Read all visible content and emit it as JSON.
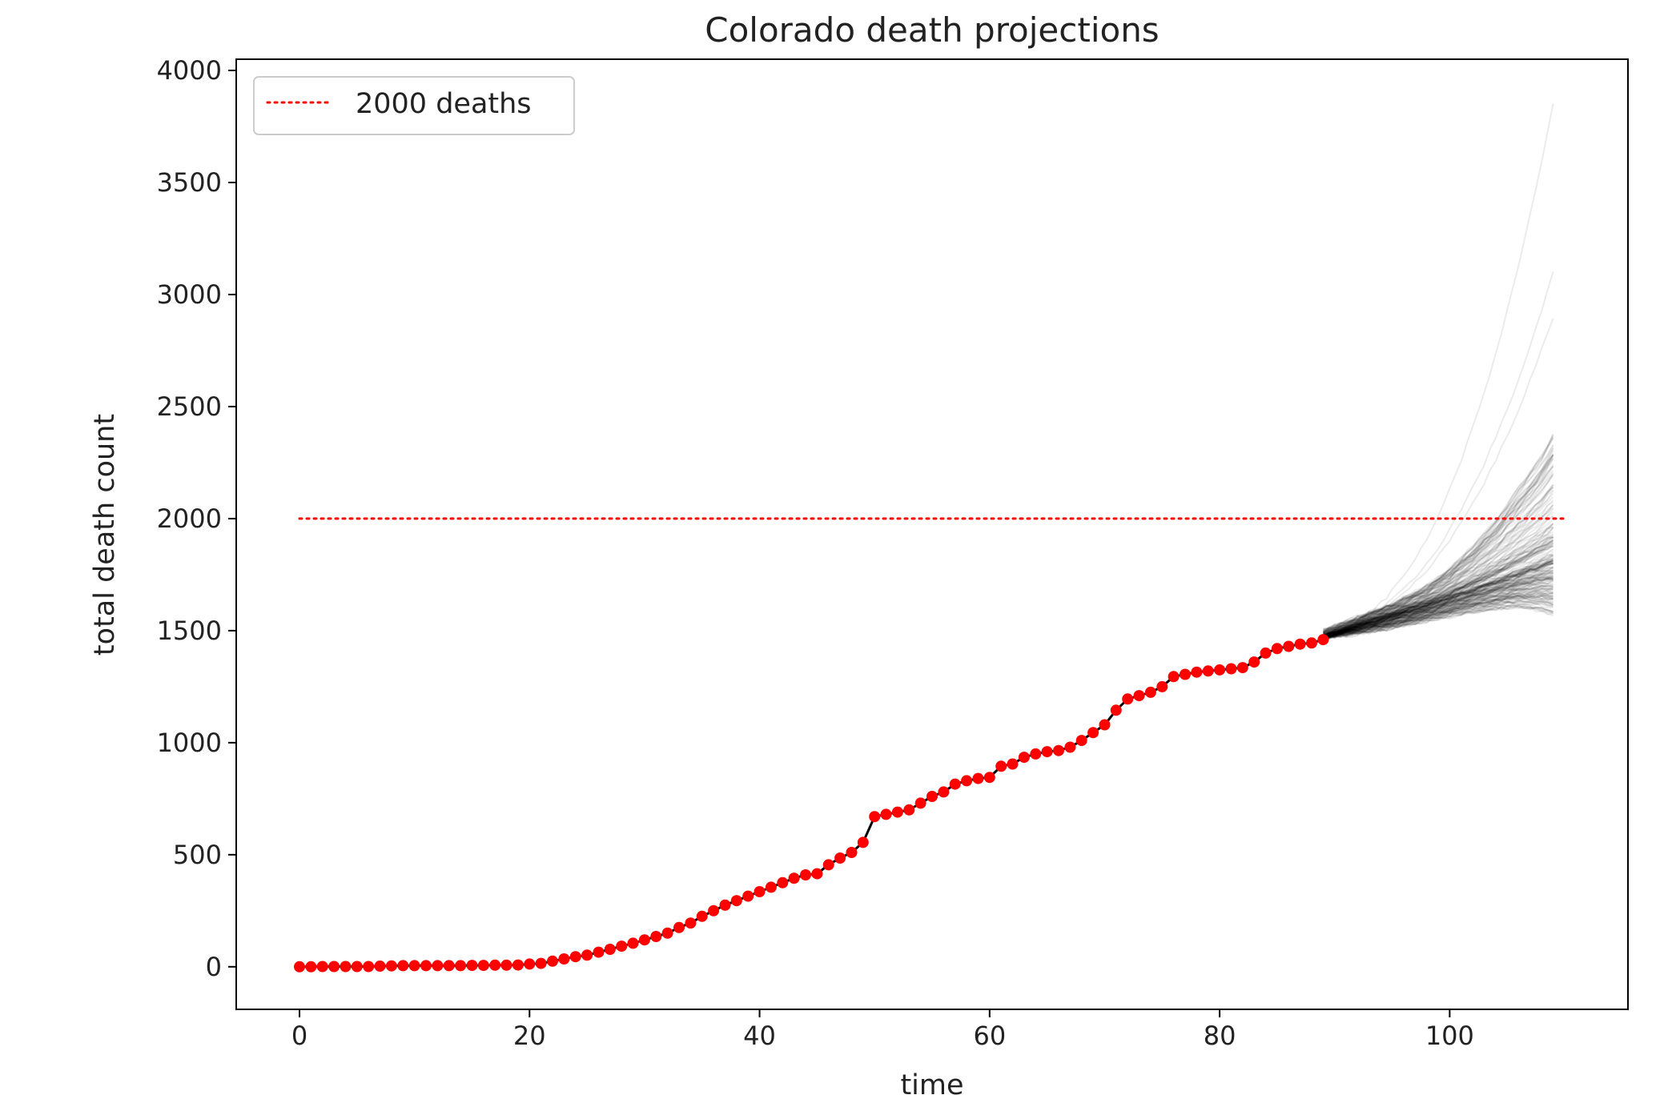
{
  "chart_data": {
    "type": "line",
    "title": "Colorado death projections",
    "xlabel": "time",
    "ylabel": "total death count",
    "xlim": [
      -5.5,
      115.5
    ],
    "ylim": [
      -190,
      4050
    ],
    "xticks": [
      0,
      20,
      40,
      60,
      80,
      100
    ],
    "yticks": [
      0,
      500,
      1000,
      1500,
      2000,
      2500,
      3000,
      3500,
      4000
    ],
    "grid": false,
    "legend": {
      "placement": "top-left",
      "entries": [
        {
          "label": "2000 deaths",
          "color": "#ff0000",
          "style": "dotted"
        }
      ]
    },
    "reference_line": {
      "name": "2000 deaths",
      "y": 2000,
      "x_range": [
        0,
        110
      ],
      "color": "#ff0000",
      "style": "dotted"
    },
    "observed": {
      "color": "#ff0000",
      "marker": "circle",
      "x": [
        0,
        1,
        2,
        3,
        4,
        5,
        6,
        7,
        8,
        9,
        10,
        11,
        12,
        13,
        14,
        15,
        16,
        17,
        18,
        19,
        20,
        21,
        22,
        23,
        24,
        25,
        26,
        27,
        28,
        29,
        30,
        31,
        32,
        33,
        34,
        35,
        36,
        37,
        38,
        39,
        40,
        41,
        42,
        43,
        44,
        45,
        46,
        47,
        48,
        49,
        50,
        51,
        52,
        53,
        54,
        55,
        56,
        57,
        58,
        59,
        60,
        61,
        62,
        63,
        64,
        65,
        66,
        67,
        68,
        69,
        70,
        71,
        72,
        73,
        74,
        75,
        76,
        77,
        78,
        79,
        80,
        81,
        82,
        83,
        84,
        85,
        86,
        87,
        88,
        89
      ],
      "y": [
        0,
        0,
        1,
        1,
        1,
        1,
        1,
        3,
        4,
        5,
        5,
        5,
        5,
        5,
        5,
        6,
        6,
        7,
        7,
        8,
        12,
        15,
        25,
        35,
        45,
        52,
        65,
        78,
        92,
        105,
        120,
        135,
        150,
        175,
        195,
        225,
        250,
        275,
        295,
        315,
        335,
        355,
        375,
        395,
        410,
        415,
        455,
        485,
        510,
        555,
        670,
        680,
        690,
        700,
        730,
        760,
        780,
        815,
        830,
        840,
        845,
        895,
        905,
        935,
        950,
        960,
        965,
        980,
        1010,
        1045,
        1080,
        1145,
        1195,
        1210,
        1225,
        1250,
        1295,
        1305,
        1315,
        1320,
        1325,
        1330,
        1335,
        1360,
        1400,
        1420,
        1430,
        1440,
        1445,
        1460
      ]
    },
    "projection_envelope": {
      "color": "#000000",
      "x": [
        89,
        92,
        95,
        98,
        100,
        102,
        104,
        106,
        108,
        109
      ],
      "low": [
        1470,
        1485,
        1510,
        1540,
        1560,
        1580,
        1590,
        1600,
        1580,
        1560
      ],
      "high": [
        1500,
        1560,
        1620,
        1700,
        1780,
        1880,
        2000,
        2150,
        2300,
        2400
      ],
      "median": [
        1470,
        1520,
        1565,
        1610,
        1645,
        1680,
        1715,
        1750,
        1790,
        1810
      ],
      "outliers_max": [
        3850,
        3100,
        2900
      ]
    }
  }
}
